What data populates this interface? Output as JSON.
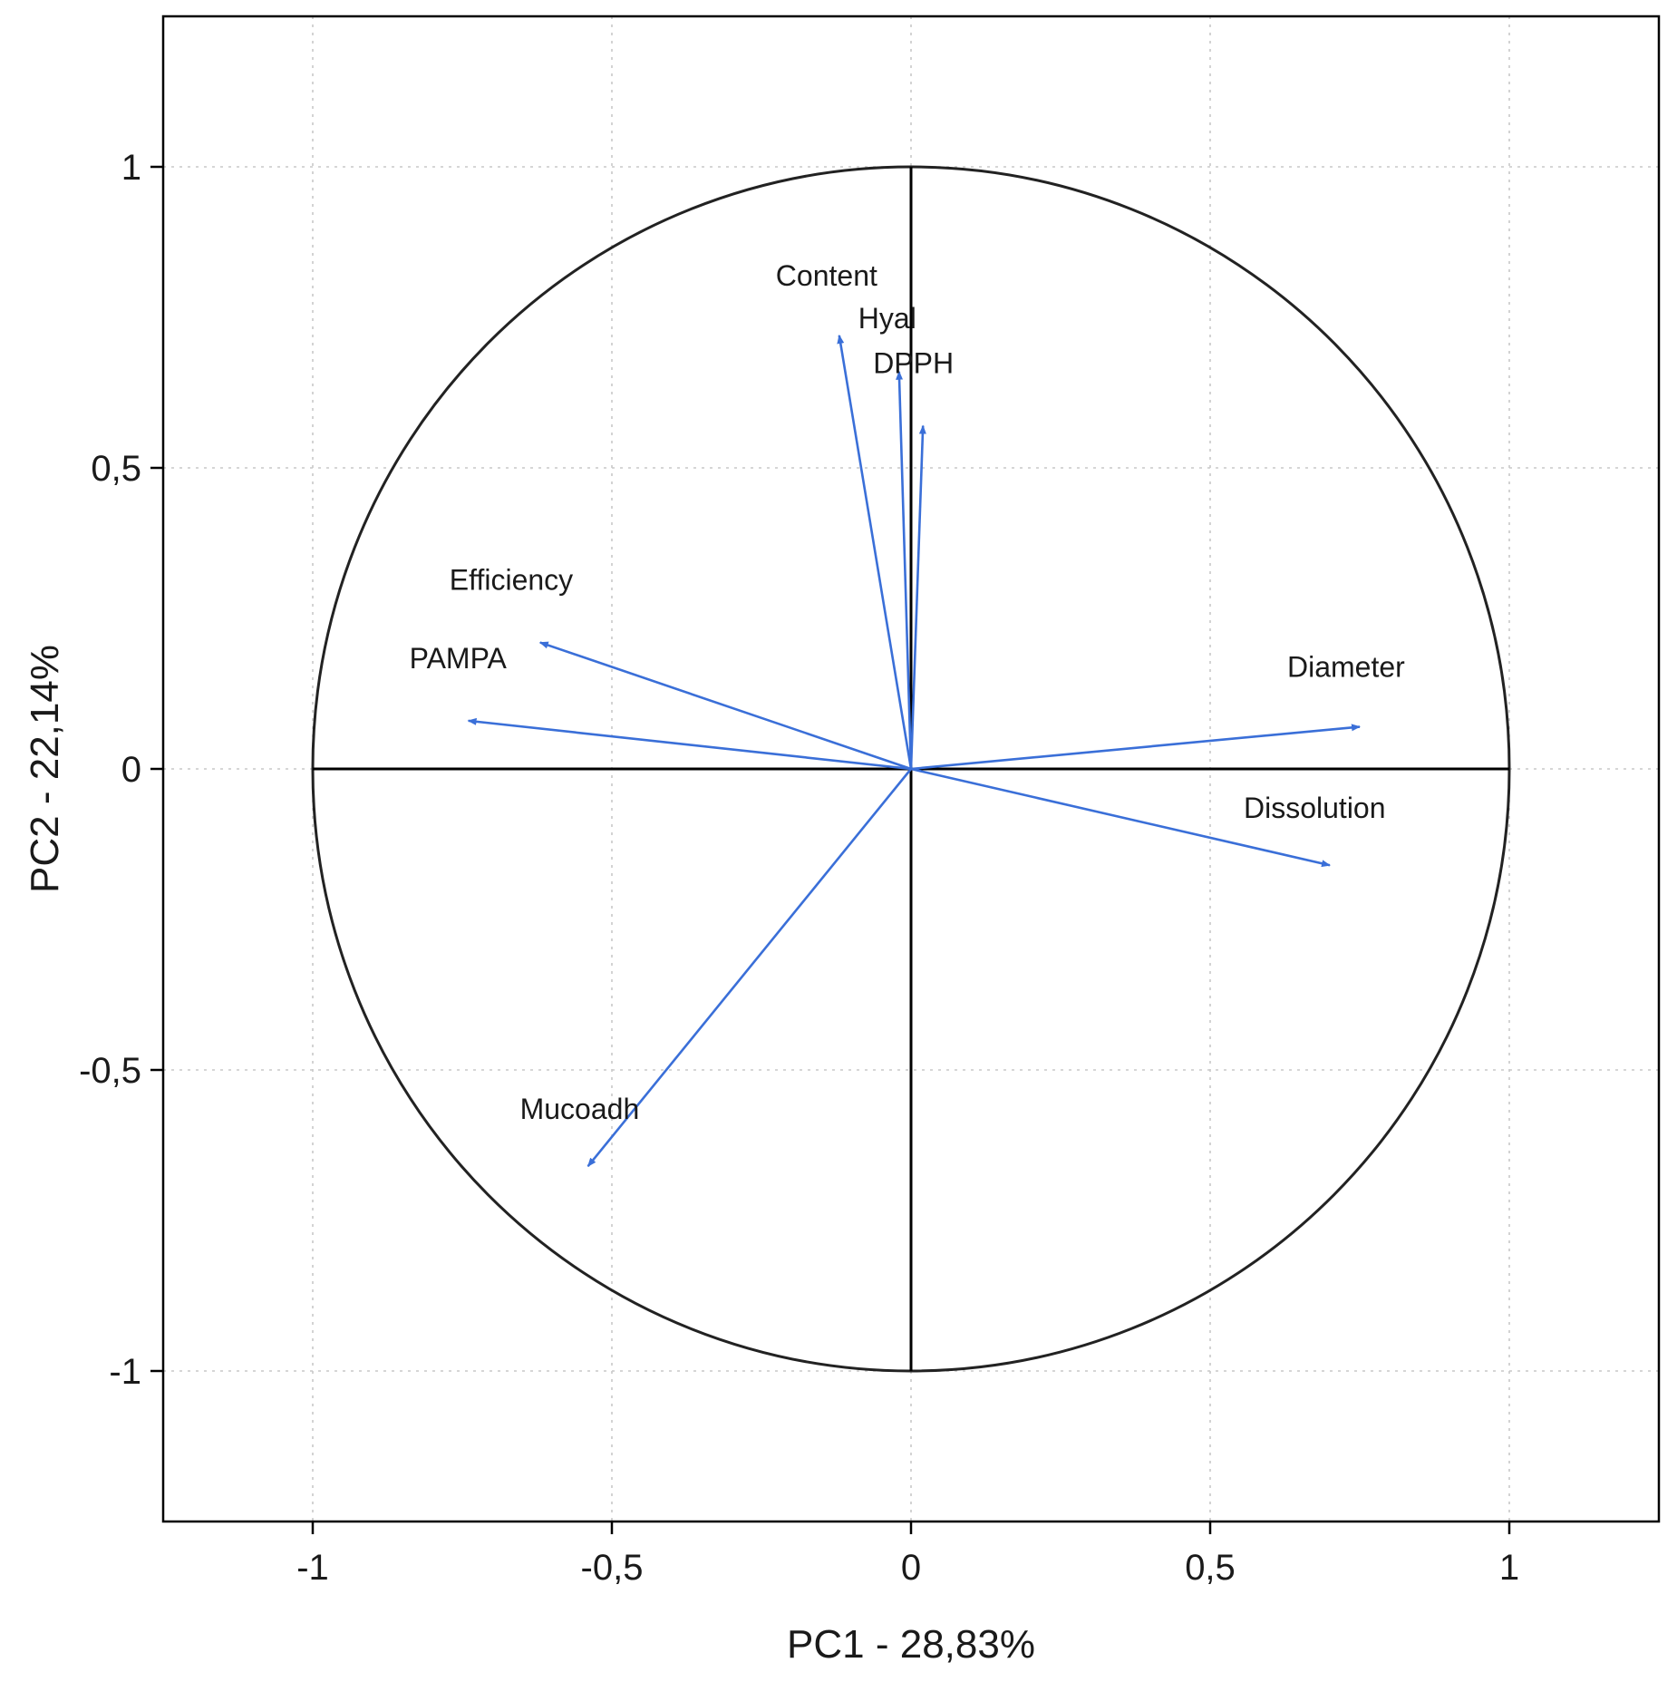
{
  "chart_data": {
    "type": "scatter",
    "subtype": "pca-correlation-circle",
    "title": "",
    "xlabel": "PC1 - 28,83%",
    "ylabel": "PC2 - 22,14%",
    "xlim": [
      -1.25,
      1.25
    ],
    "ylim": [
      -1.25,
      1.25
    ],
    "xticks": [
      -1,
      -0.5,
      0,
      0.5,
      1
    ],
    "xtick_labels": [
      "-1",
      "-0,5",
      "0",
      "0,5",
      "1"
    ],
    "yticks": [
      -1,
      -0.5,
      0,
      0.5,
      1
    ],
    "ytick_labels": [
      "-1",
      "-0,5",
      "0",
      "0,5",
      "1"
    ],
    "grid": true,
    "unit_circle": true,
    "colors": {
      "vector": "#3a6fd8",
      "axis_line": "#000000",
      "grid": "#c8c8c8"
    },
    "vectors": [
      {
        "name": "Content",
        "x": -0.12,
        "y": 0.72
      },
      {
        "name": "Hyal",
        "x": -0.02,
        "y": 0.66
      },
      {
        "name": "DPPH",
        "x": 0.02,
        "y": 0.57
      },
      {
        "name": "Efficiency",
        "x": -0.62,
        "y": 0.21
      },
      {
        "name": "PAMPA",
        "x": -0.74,
        "y": 0.08
      },
      {
        "name": "Diameter",
        "x": 0.75,
        "y": 0.07
      },
      {
        "name": "Dissolution",
        "x": 0.7,
        "y": -0.16
      },
      {
        "name": "Mucoadh",
        "x": -0.54,
        "y": -0.66
      }
    ]
  }
}
